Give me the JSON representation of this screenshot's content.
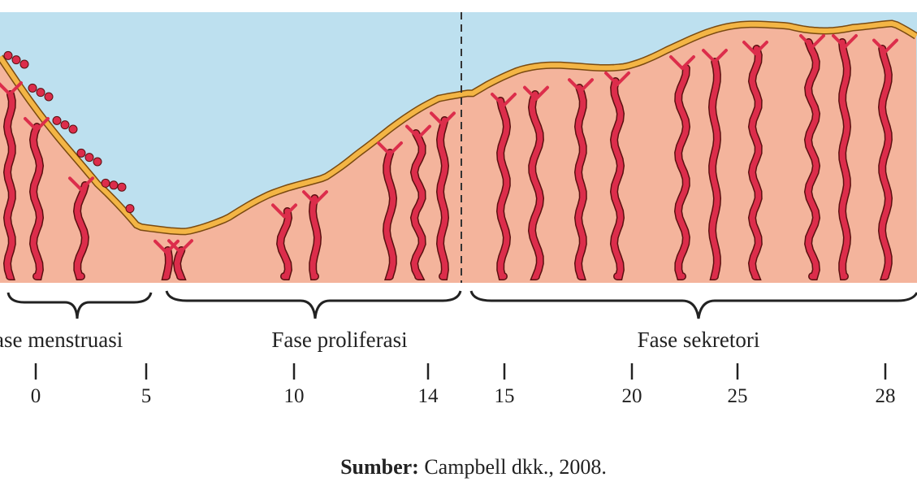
{
  "phases": [
    {
      "label": "ase menstruasi"
    },
    {
      "label": "Fase proliferasi"
    },
    {
      "label": "Fase sekretori"
    }
  ],
  "days": [
    "0",
    "5",
    "10",
    "14",
    "15",
    "20",
    "25",
    "28"
  ],
  "caption": {
    "source_label": "Sumber:",
    "source_text": "Campbell dkk., 2008."
  }
}
